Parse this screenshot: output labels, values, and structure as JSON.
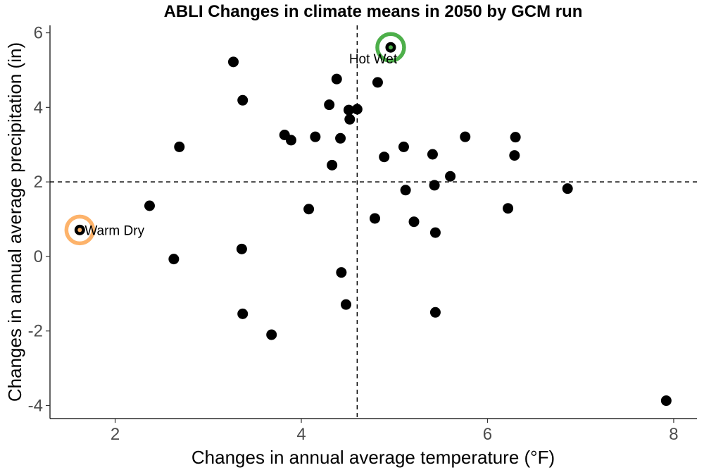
{
  "chart_data": {
    "type": "scatter",
    "title": "ABLI Changes in climate means in 2050 by GCM run",
    "xlabel": "Changes in annual average temperature (°F)",
    "ylabel": "Changes in annual average precipitation (in)",
    "xlim": [
      1.3,
      8.25
    ],
    "ylim": [
      -4.35,
      6.2
    ],
    "xticks": [
      2,
      4,
      6,
      8
    ],
    "yticks": [
      -4,
      -2,
      0,
      2,
      4,
      6
    ],
    "grid": false,
    "reference_lines": {
      "x": 4.6,
      "y": 2.0,
      "style": "dashed"
    },
    "point_color": "#000000",
    "points": [
      {
        "x": 3.27,
        "y": 5.22
      },
      {
        "x": 4.38,
        "y": 4.76
      },
      {
        "x": 4.82,
        "y": 4.67
      },
      {
        "x": 3.37,
        "y": 4.19
      },
      {
        "x": 4.3,
        "y": 4.07
      },
      {
        "x": 4.51,
        "y": 3.93
      },
      {
        "x": 4.6,
        "y": 3.95
      },
      {
        "x": 4.52,
        "y": 3.68
      },
      {
        "x": 3.82,
        "y": 3.26
      },
      {
        "x": 3.89,
        "y": 3.12
      },
      {
        "x": 4.15,
        "y": 3.21
      },
      {
        "x": 4.42,
        "y": 3.17
      },
      {
        "x": 5.76,
        "y": 3.21
      },
      {
        "x": 6.3,
        "y": 3.2
      },
      {
        "x": 2.69,
        "y": 2.94
      },
      {
        "x": 5.1,
        "y": 2.94
      },
      {
        "x": 5.41,
        "y": 2.74
      },
      {
        "x": 6.29,
        "y": 2.71
      },
      {
        "x": 4.89,
        "y": 2.67
      },
      {
        "x": 4.33,
        "y": 2.45
      },
      {
        "x": 5.6,
        "y": 2.15
      },
      {
        "x": 5.43,
        "y": 1.91
      },
      {
        "x": 5.12,
        "y": 1.78
      },
      {
        "x": 6.86,
        "y": 1.82
      },
      {
        "x": 2.37,
        "y": 1.36
      },
      {
        "x": 4.08,
        "y": 1.27
      },
      {
        "x": 6.22,
        "y": 1.29
      },
      {
        "x": 4.79,
        "y": 1.02
      },
      {
        "x": 5.21,
        "y": 0.93
      },
      {
        "x": 5.44,
        "y": 0.64
      },
      {
        "x": 1.62,
        "y": 0.71
      },
      {
        "x": 3.36,
        "y": 0.2
      },
      {
        "x": 2.63,
        "y": -0.07
      },
      {
        "x": 4.43,
        "y": -0.43
      },
      {
        "x": 4.48,
        "y": -1.29
      },
      {
        "x": 3.37,
        "y": -1.54
      },
      {
        "x": 5.44,
        "y": -1.5
      },
      {
        "x": 3.68,
        "y": -2.1
      },
      {
        "x": 7.92,
        "y": -3.87
      },
      {
        "x": 4.96,
        "y": 5.61
      }
    ],
    "highlights": [
      {
        "label": "Hot Wet",
        "x": 4.96,
        "y": 5.61,
        "color": "#4daf4a",
        "inner_color": "#4daf4a",
        "label_side": "below"
      },
      {
        "label": "Warm Dry",
        "x": 1.62,
        "y": 0.71,
        "color": "#fdb36b",
        "inner_color": "#fdb36b",
        "label_side": "right"
      }
    ]
  }
}
